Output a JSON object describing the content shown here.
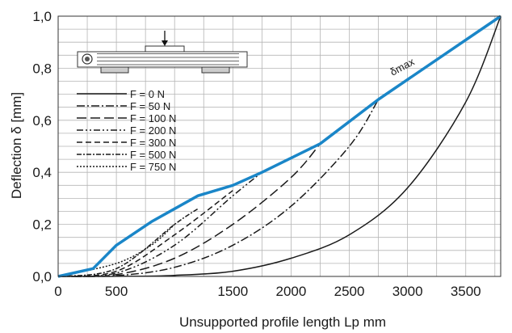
{
  "chart_data": {
    "type": "line",
    "xlabel": "Unsupported profile length Lp  mm",
    "ylabel": "Deflection δ [mm]",
    "xlim": [
      0,
      3800
    ],
    "ylim": [
      0,
      1.0
    ],
    "x_ticks": [
      "0",
      "500",
      "1500",
      "2000",
      "2500",
      "3000",
      "3500"
    ],
    "x_tick_values": [
      0,
      500,
      1500,
      2000,
      2500,
      3000,
      3500
    ],
    "y_ticks": [
      "0,0",
      "0,2",
      "0,4",
      "0,6",
      "0,8",
      "1,0"
    ],
    "y_tick_values": [
      0,
      0.2,
      0.4,
      0.6,
      0.8,
      1.0
    ],
    "grid": true,
    "legend_position": "left",
    "annotation": "δmax",
    "series": [
      {
        "name": "F = 0 N",
        "dash": "",
        "x": [
          0,
          500,
          1000,
          1500,
          2000,
          2500,
          3000,
          3500,
          3800
        ],
        "y": [
          0,
          0.0002,
          0.004,
          0.02,
          0.07,
          0.16,
          0.34,
          0.67,
          1.0
        ]
      },
      {
        "name": "F = 50 N",
        "dash": "10,3,2,3",
        "x": [
          0,
          500,
          1000,
          1500,
          2000,
          2500,
          2750
        ],
        "y": [
          0,
          0.003,
          0.035,
          0.12,
          0.27,
          0.5,
          0.68
        ]
      },
      {
        "name": "F = 100 N",
        "dash": "12,5",
        "x": [
          0,
          500,
          1000,
          1500,
          2000,
          2250
        ],
        "y": [
          0,
          0.007,
          0.07,
          0.2,
          0.38,
          0.51
        ]
      },
      {
        "name": "F = 200 N",
        "dash": "8,3,2,3,2,3",
        "x": [
          0,
          500,
          1000,
          1500,
          1750
        ],
        "y": [
          0,
          0.013,
          0.12,
          0.31,
          0.4
        ]
      },
      {
        "name": "F = 300 N",
        "dash": "7,4",
        "x": [
          0,
          500,
          1000,
          1500
        ],
        "y": [
          0,
          0.02,
          0.16,
          0.33
        ]
      },
      {
        "name": "F = 500 N",
        "dash": "6,2,2,2",
        "x": [
          0,
          500,
          1000,
          1200
        ],
        "y": [
          0,
          0.03,
          0.2,
          0.26
        ]
      },
      {
        "name": "F = 750 N",
        "dash": "2,2",
        "x": [
          0,
          500,
          800,
          1000
        ],
        "y": [
          0,
          0.05,
          0.12,
          0.2
        ]
      }
    ],
    "envelope": {
      "name": "δmax",
      "color": "#1a86c8",
      "x": [
        0,
        300,
        500,
        800,
        1000,
        1200,
        1500,
        1750,
        2250,
        2750,
        3800
      ],
      "y": [
        0,
        0.03,
        0.12,
        0.21,
        0.26,
        0.31,
        0.35,
        0.4,
        0.51,
        0.68,
        1.0
      ]
    }
  }
}
